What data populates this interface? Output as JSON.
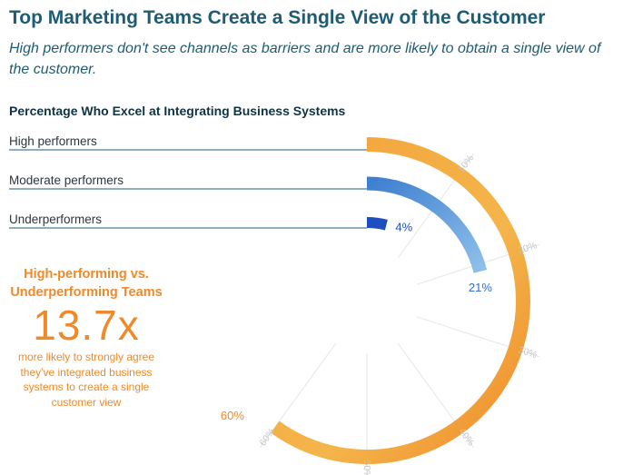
{
  "header": {
    "title": "Top Marketing Teams Create a Single View of the Customer",
    "subtitle": "High performers don't see channels as barriers and are more likely to obtain a single view of the customer."
  },
  "callout": {
    "heading_line1": "High-performing vs.",
    "heading_line2": "Underperforming Teams",
    "multiplier": "13.7x",
    "text_line1": "more likely to strongly agree",
    "text_line2": "they've integrated business",
    "text_line3": "systems to create a single",
    "text_line4": "customer view"
  },
  "colors": {
    "heading": "#1d5c73",
    "accent": "#ef8a2a",
    "high": "#f0a83a",
    "moderate": "#4a90d9",
    "under": "#1f4fbf"
  },
  "chart_data": {
    "type": "radial-bar",
    "title": "Percentage Who Excel at Integrating Business Systems",
    "categories": [
      "High performers",
      "Moderate performers",
      "Underperformers"
    ],
    "values": [
      60,
      21,
      4
    ],
    "value_labels": [
      "60%",
      "21%",
      "4%"
    ],
    "scale_max": 100,
    "ticks": [
      10,
      20,
      30,
      40,
      50,
      60
    ],
    "tick_labels": [
      "10%",
      "20%",
      "30%",
      "40%",
      "50%",
      "60%"
    ],
    "grid": true,
    "colors": [
      "#f0a83a",
      "#4a90d9",
      "#1f4fbf"
    ]
  }
}
